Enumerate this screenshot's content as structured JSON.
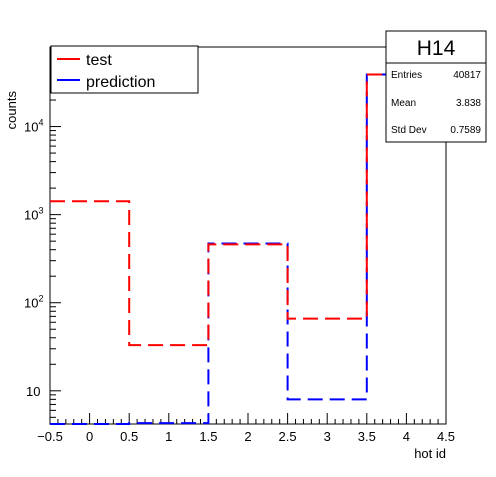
{
  "chart_data": {
    "type": "histogram",
    "title": "H14",
    "xlabel": "hot id",
    "ylabel": "counts",
    "xlim": [
      -0.5,
      4.5
    ],
    "ylim": [
      4.2,
      80000
    ],
    "y_scale": "log",
    "grid": false,
    "x_ticks": [
      "−0.5",
      "0",
      "0.5",
      "1",
      "1.5",
      "2",
      "2.5",
      "3",
      "3.5",
      "4",
      "4.5"
    ],
    "y_ticks": [
      {
        "value": 10,
        "base": "10",
        "exp": ""
      },
      {
        "value": 100,
        "base": "10",
        "exp": "2"
      },
      {
        "value": 1000,
        "base": "10",
        "exp": "3"
      },
      {
        "value": 10000,
        "base": "10",
        "exp": "4"
      }
    ],
    "bin_edges": [
      -0.5,
      0.5,
      1.5,
      2.5,
      3.5,
      4.5
    ],
    "series": [
      {
        "name": "test",
        "color": "#ff0000",
        "values": [
          1420,
          33,
          460,
          66,
          39000
        ]
      },
      {
        "name": "prediction",
        "color": "#0000ff",
        "values": [
          0,
          4.3,
          470,
          8,
          39000
        ]
      }
    ],
    "legend": {
      "position": "top-left"
    },
    "stats": {
      "title": "H14",
      "rows": [
        {
          "label": "Entries",
          "value": "40817"
        },
        {
          "label": "Mean",
          "value": "3.838"
        },
        {
          "label": "Std Dev",
          "value": "0.7589"
        }
      ]
    }
  }
}
